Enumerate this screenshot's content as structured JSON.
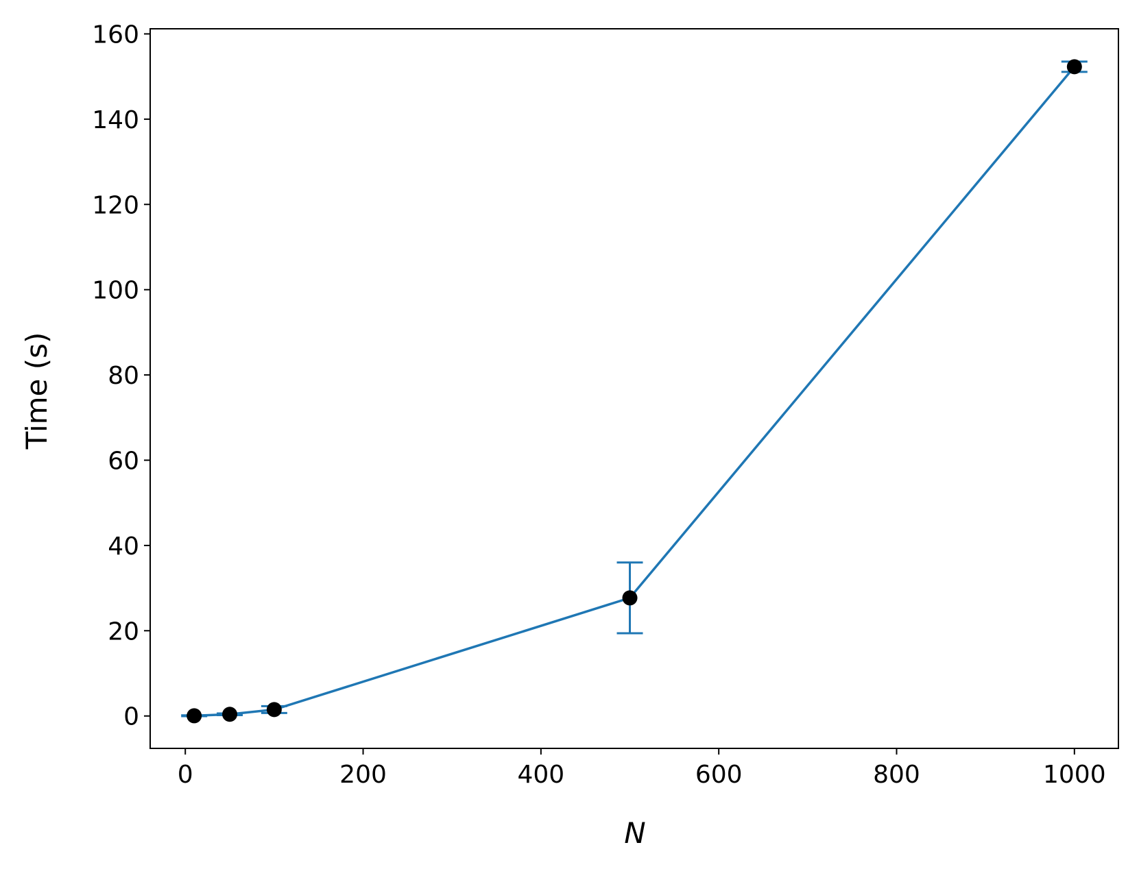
{
  "chart_data": {
    "type": "line",
    "xlabel": "N",
    "ylabel": "Time (s)",
    "x": [
      10,
      50,
      100,
      500,
      1000
    ],
    "values": [
      0.05,
      0.4,
      1.5,
      27.7,
      152.3
    ],
    "errors": [
      0.1,
      0.2,
      0.8,
      8.3,
      1.2
    ],
    "color": "#1f77b4",
    "marker_color": "#000000",
    "xlim": [
      -39.5,
      1049.5
    ],
    "xticks": [
      0,
      200,
      400,
      600,
      800,
      1000
    ],
    "ylim": [
      -7.6,
      161.2
    ],
    "yticks": [
      0,
      20,
      40,
      60,
      80,
      100,
      120,
      140,
      160
    ],
    "grid": false
  }
}
